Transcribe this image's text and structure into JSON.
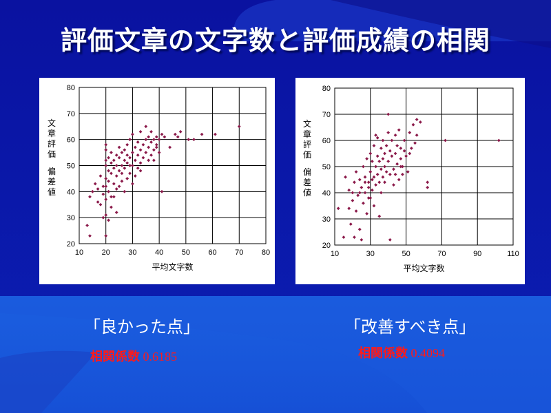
{
  "slide": {
    "title": "評価文章の文字数と評価成績の相関"
  },
  "left": {
    "caption": "「良かった点」",
    "corr_label": "相関係数",
    "corr_value": "0.6185"
  },
  "right": {
    "caption": "「改善すべき点」",
    "corr_label": "相関係数",
    "corr_value": "0.4094"
  },
  "colors": {
    "background": "#0a18a8",
    "title_text": "#ffffff",
    "correlation_text": "#ff1a1a",
    "marker": "#8b1a4a"
  },
  "chart_data": [
    {
      "type": "scatter",
      "title": "",
      "xlabel": "平均文字数",
      "ylabel": "文章評価 偏差値",
      "xlim": [
        10,
        80
      ],
      "ylim": [
        20,
        80
      ],
      "xticks": [
        10,
        20,
        30,
        40,
        50,
        60,
        70,
        80
      ],
      "yticks": [
        20,
        30,
        40,
        50,
        60,
        70,
        80
      ],
      "grid": true,
      "points": [
        [
          13,
          27
        ],
        [
          14,
          23
        ],
        [
          14,
          38
        ],
        [
          15,
          40
        ],
        [
          16,
          43
        ],
        [
          17,
          36
        ],
        [
          17,
          41
        ],
        [
          18,
          35
        ],
        [
          18,
          46
        ],
        [
          19,
          39
        ],
        [
          19,
          30
        ],
        [
          19,
          42
        ],
        [
          20,
          23
        ],
        [
          20,
          31
        ],
        [
          20,
          37
        ],
        [
          20,
          42
        ],
        [
          20,
          45
        ],
        [
          20,
          50
        ],
        [
          20,
          52
        ],
        [
          20,
          56
        ],
        [
          20,
          58
        ],
        [
          21,
          29
        ],
        [
          21,
          40
        ],
        [
          21,
          44
        ],
        [
          21,
          48
        ],
        [
          21,
          53
        ],
        [
          22,
          34
        ],
        [
          22,
          47
        ],
        [
          22,
          51
        ],
        [
          22,
          55
        ],
        [
          23,
          38
        ],
        [
          23,
          43
        ],
        [
          23,
          49
        ],
        [
          23,
          52
        ],
        [
          24,
          32
        ],
        [
          24,
          41
        ],
        [
          24,
          46
        ],
        [
          24,
          50
        ],
        [
          24,
          54
        ],
        [
          25,
          42
        ],
        [
          25,
          48
        ],
        [
          25,
          53
        ],
        [
          25,
          57
        ],
        [
          26,
          44
        ],
        [
          26,
          50
        ],
        [
          26,
          55
        ],
        [
          27,
          40
        ],
        [
          27,
          49
        ],
        [
          27,
          52
        ],
        [
          27,
          56
        ],
        [
          28,
          45
        ],
        [
          28,
          51
        ],
        [
          28,
          54
        ],
        [
          28,
          58
        ],
        [
          29,
          47
        ],
        [
          29,
          53
        ],
        [
          29,
          60
        ],
        [
          30,
          43
        ],
        [
          30,
          50
        ],
        [
          30,
          55
        ],
        [
          30,
          62
        ],
        [
          31,
          46
        ],
        [
          31,
          52
        ],
        [
          31,
          57
        ],
        [
          32,
          49
        ],
        [
          32,
          54
        ],
        [
          32,
          59
        ],
        [
          33,
          51
        ],
        [
          33,
          56
        ],
        [
          33,
          63
        ],
        [
          34,
          53
        ],
        [
          34,
          58
        ],
        [
          35,
          55
        ],
        [
          35,
          60
        ],
        [
          35,
          65
        ],
        [
          36,
          52
        ],
        [
          36,
          57
        ],
        [
          36,
          61
        ],
        [
          37,
          54
        ],
        [
          37,
          59
        ],
        [
          37,
          63
        ],
        [
          38,
          56
        ],
        [
          38,
          60
        ],
        [
          38,
          52
        ],
        [
          39,
          58
        ],
        [
          39,
          61
        ],
        [
          40,
          55
        ],
        [
          40,
          60
        ],
        [
          41,
          40
        ],
        [
          41,
          62
        ],
        [
          44,
          57
        ],
        [
          46,
          62
        ],
        [
          47,
          61
        ],
        [
          48,
          63
        ],
        [
          51,
          60
        ],
        [
          53,
          60
        ],
        [
          56,
          62
        ],
        [
          61,
          62
        ],
        [
          70,
          65
        ],
        [
          42,
          61
        ],
        [
          39,
          57
        ],
        [
          33,
          48
        ],
        [
          29,
          50
        ],
        [
          26,
          47
        ],
        [
          22,
          38
        ]
      ]
    },
    {
      "type": "scatter",
      "title": "",
      "xlabel": "平均文字数",
      "ylabel": "文章評価 偏差値",
      "xlim": [
        10,
        110
      ],
      "ylim": [
        20,
        80
      ],
      "xticks": [
        10,
        30,
        50,
        70,
        90,
        110
      ],
      "yticks": [
        20,
        30,
        40,
        50,
        60,
        70,
        80
      ],
      "grid": true,
      "points": [
        [
          12,
          34
        ],
        [
          15,
          23
        ],
        [
          16,
          46
        ],
        [
          18,
          34
        ],
        [
          18,
          41
        ],
        [
          19,
          28
        ],
        [
          20,
          37
        ],
        [
          20,
          40
        ],
        [
          21,
          23
        ],
        [
          21,
          44
        ],
        [
          22,
          33
        ],
        [
          22,
          48
        ],
        [
          23,
          39
        ],
        [
          24,
          26
        ],
        [
          24,
          45
        ],
        [
          25,
          22
        ],
        [
          25,
          42
        ],
        [
          26,
          36
        ],
        [
          26,
          50
        ],
        [
          27,
          40
        ],
        [
          27,
          46
        ],
        [
          28,
          32
        ],
        [
          28,
          53
        ],
        [
          29,
          38
        ],
        [
          29,
          44
        ],
        [
          30,
          48
        ],
        [
          30,
          55
        ],
        [
          31,
          41
        ],
        [
          31,
          52
        ],
        [
          32,
          35
        ],
        [
          32,
          46
        ],
        [
          32,
          58
        ],
        [
          33,
          43
        ],
        [
          33,
          50
        ],
        [
          34,
          47
        ],
        [
          34,
          54
        ],
        [
          34,
          61
        ],
        [
          35,
          44
        ],
        [
          35,
          52
        ],
        [
          36,
          49
        ],
        [
          36,
          57
        ],
        [
          37,
          46
        ],
        [
          37,
          53
        ],
        [
          37,
          60
        ],
        [
          38,
          50
        ],
        [
          38,
          55
        ],
        [
          39,
          48
        ],
        [
          39,
          58
        ],
        [
          40,
          52
        ],
        [
          40,
          63
        ],
        [
          41,
          22
        ],
        [
          41,
          47
        ],
        [
          41,
          56
        ],
        [
          42,
          54
        ],
        [
          42,
          60
        ],
        [
          43,
          49
        ],
        [
          44,
          55
        ],
        [
          44,
          62
        ],
        [
          45,
          51
        ],
        [
          45,
          58
        ],
        [
          46,
          45
        ],
        [
          46,
          64
        ],
        [
          47,
          53
        ],
        [
          47,
          57
        ],
        [
          48,
          50
        ],
        [
          49,
          56
        ],
        [
          49,
          60
        ],
        [
          50,
          54
        ],
        [
          51,
          48
        ],
        [
          52,
          63
        ],
        [
          53,
          57
        ],
        [
          54,
          66
        ],
        [
          55,
          59
        ],
        [
          56,
          68
        ],
        [
          56,
          62
        ],
        [
          58,
          67
        ],
        [
          62,
          44
        ],
        [
          62,
          42
        ],
        [
          72,
          60
        ],
        [
          102,
          60
        ],
        [
          40,
          70
        ],
        [
          33,
          62
        ],
        [
          35,
          31
        ],
        [
          38,
          44
        ],
        [
          44,
          47
        ],
        [
          29,
          42
        ],
        [
          31,
          45
        ],
        [
          36,
          40
        ],
        [
          43,
          43
        ],
        [
          47,
          50
        ],
        [
          30,
          38
        ],
        [
          27,
          44
        ],
        [
          24,
          40
        ],
        [
          52,
          55
        ],
        [
          48,
          47
        ]
      ]
    }
  ]
}
